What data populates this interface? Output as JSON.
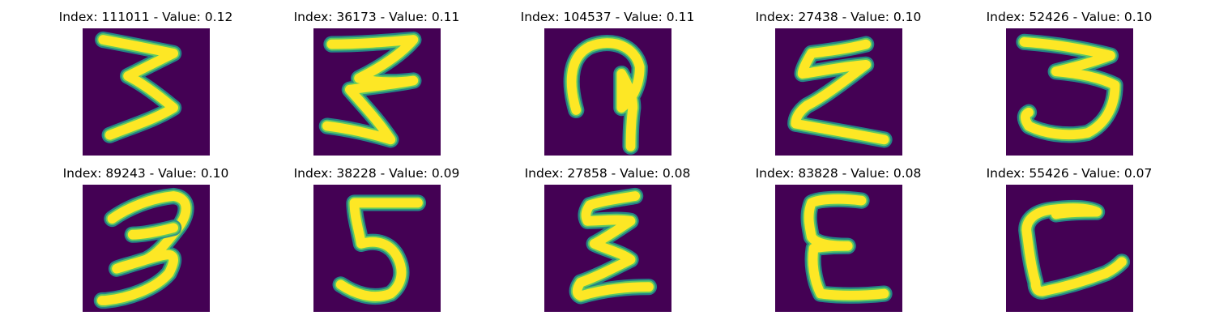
{
  "colors": {
    "background": "#440154",
    "stroke_edge": "#21918c",
    "stroke_mid": "#5ec962",
    "stroke_core": "#fde725"
  },
  "panels": [
    {
      "title": "Index: 111011 - Value: 0.12",
      "index": 111011,
      "value": 0.12
    },
    {
      "title": "Index: 36173 - Value: 0.11",
      "index": 36173,
      "value": 0.11
    },
    {
      "title": "Index: 104537 - Value: 0.11",
      "index": 104537,
      "value": 0.11
    },
    {
      "title": "Index: 27438 - Value: 0.10",
      "index": 27438,
      "value": 0.1
    },
    {
      "title": "Index: 52426 - Value: 0.10",
      "index": 52426,
      "value": 0.1
    },
    {
      "title": "Index: 89243 - Value: 0.10",
      "index": 89243,
      "value": 0.1
    },
    {
      "title": "Index: 38228 - Value: 0.09",
      "index": 38228,
      "value": 0.09
    },
    {
      "title": "Index: 27858 - Value: 0.08",
      "index": 27858,
      "value": 0.08
    },
    {
      "title": "Index: 83828 - Value: 0.08",
      "index": 83828,
      "value": 0.08
    },
    {
      "title": "Index: 55426 - Value: 0.07",
      "index": 55426,
      "value": 0.07
    }
  ]
}
